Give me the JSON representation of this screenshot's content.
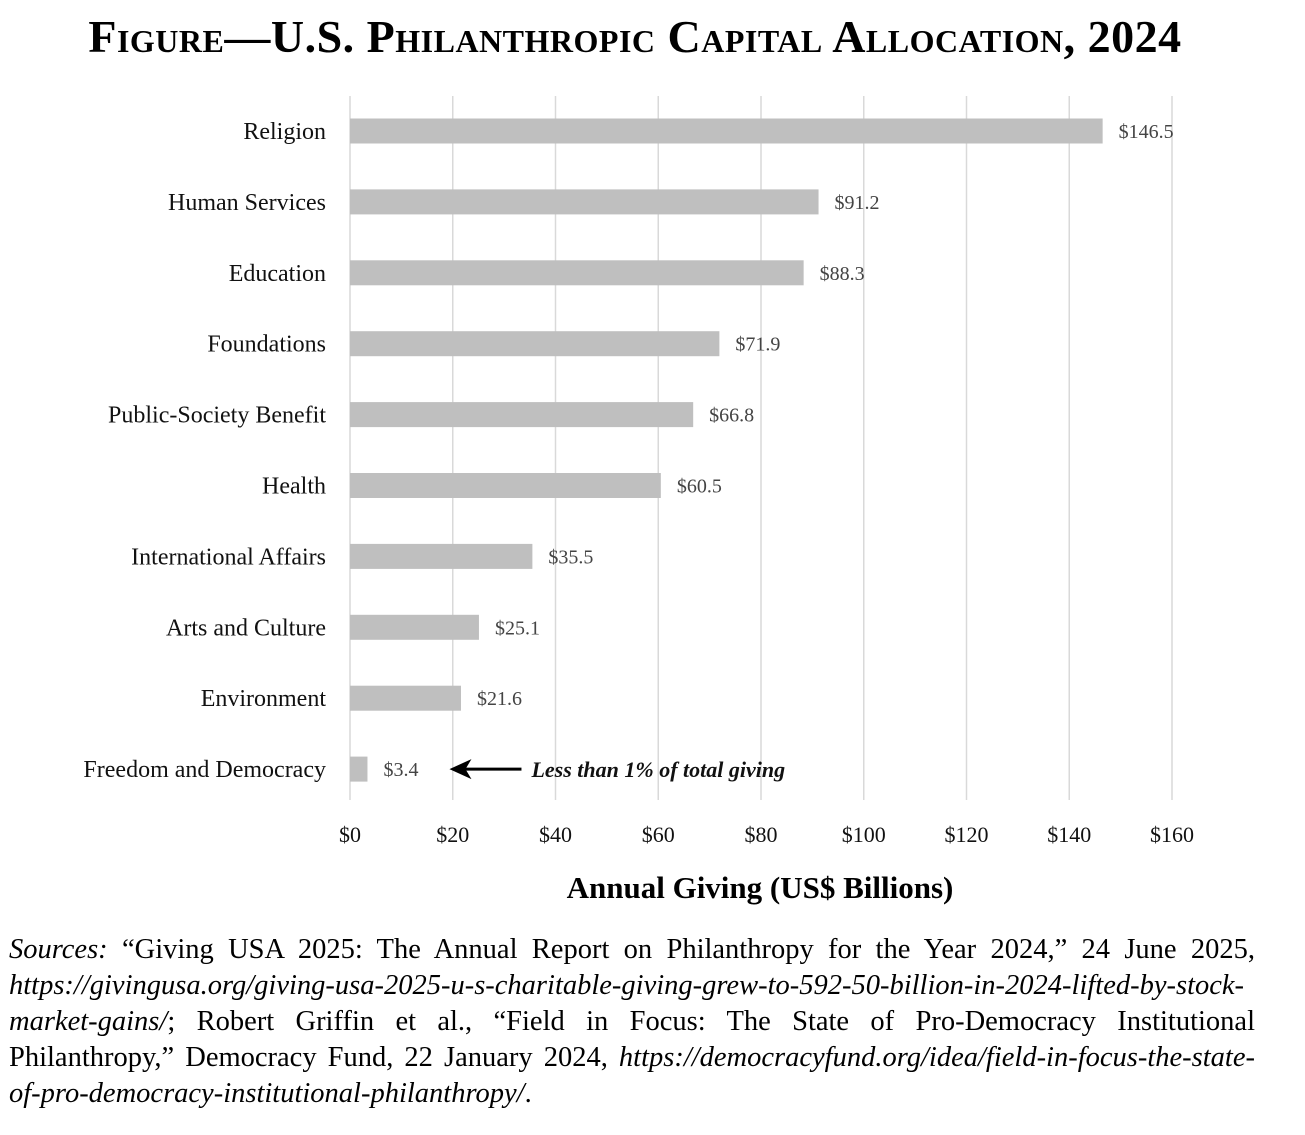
{
  "title": "Figure—U.S. Philanthropic Capital Allocation, 2024",
  "chart_data": {
    "type": "bar",
    "orientation": "horizontal",
    "categories": [
      "Religion",
      "Human Services",
      "Education",
      "Foundations",
      "Public-Society Benefit",
      "Health",
      "International Affairs",
      "Arts and Culture",
      "Environment",
      "Freedom and Democracy"
    ],
    "values": [
      146.5,
      91.2,
      88.3,
      71.9,
      66.8,
      60.5,
      35.5,
      25.1,
      21.6,
      3.4
    ],
    "value_labels": [
      "$146.5",
      "$91.2",
      "$88.3",
      "$71.9",
      "$66.8",
      "$60.5",
      "$35.5",
      "$25.1",
      "$21.6",
      "$3.4"
    ],
    "xlabel": "Annual Giving (US$ Billions)",
    "xlim": [
      0,
      160
    ],
    "x_ticks": [
      0,
      20,
      40,
      60,
      80,
      100,
      120,
      140,
      160
    ],
    "x_tick_labels": [
      "$0",
      "$20",
      "$40",
      "$60",
      "$80",
      "$100",
      "$120",
      "$140",
      "$160"
    ],
    "grid": "vertical",
    "bar_color": "#bfbfbf",
    "grid_color": "#d9d9d9",
    "annotation": {
      "text": "Less than 1% of total giving",
      "category": "Freedom and Democracy"
    }
  },
  "sources": {
    "label": "Sources:",
    "part1": " “Giving USA 2025: The Annual Report on Philanthropy for the Year 2024,” 24 June 2025, ",
    "url1": "https://givingusa.org/giving-usa-2025-u-s-charitable-giving-grew-to-592-50-billion-in-2024-lifted-by-stock-market-gains/",
    "part2": "; Robert Griffin et al., “Field in Focus: The State of Pro-Democracy Institutional Philanthropy,” Democracy Fund, 22 January 2024, ",
    "url2": "https://democracyfund.org/idea/field-in-focus-the-state-of-pro-democracy-institutional-philanthropy/",
    "part3": "."
  }
}
